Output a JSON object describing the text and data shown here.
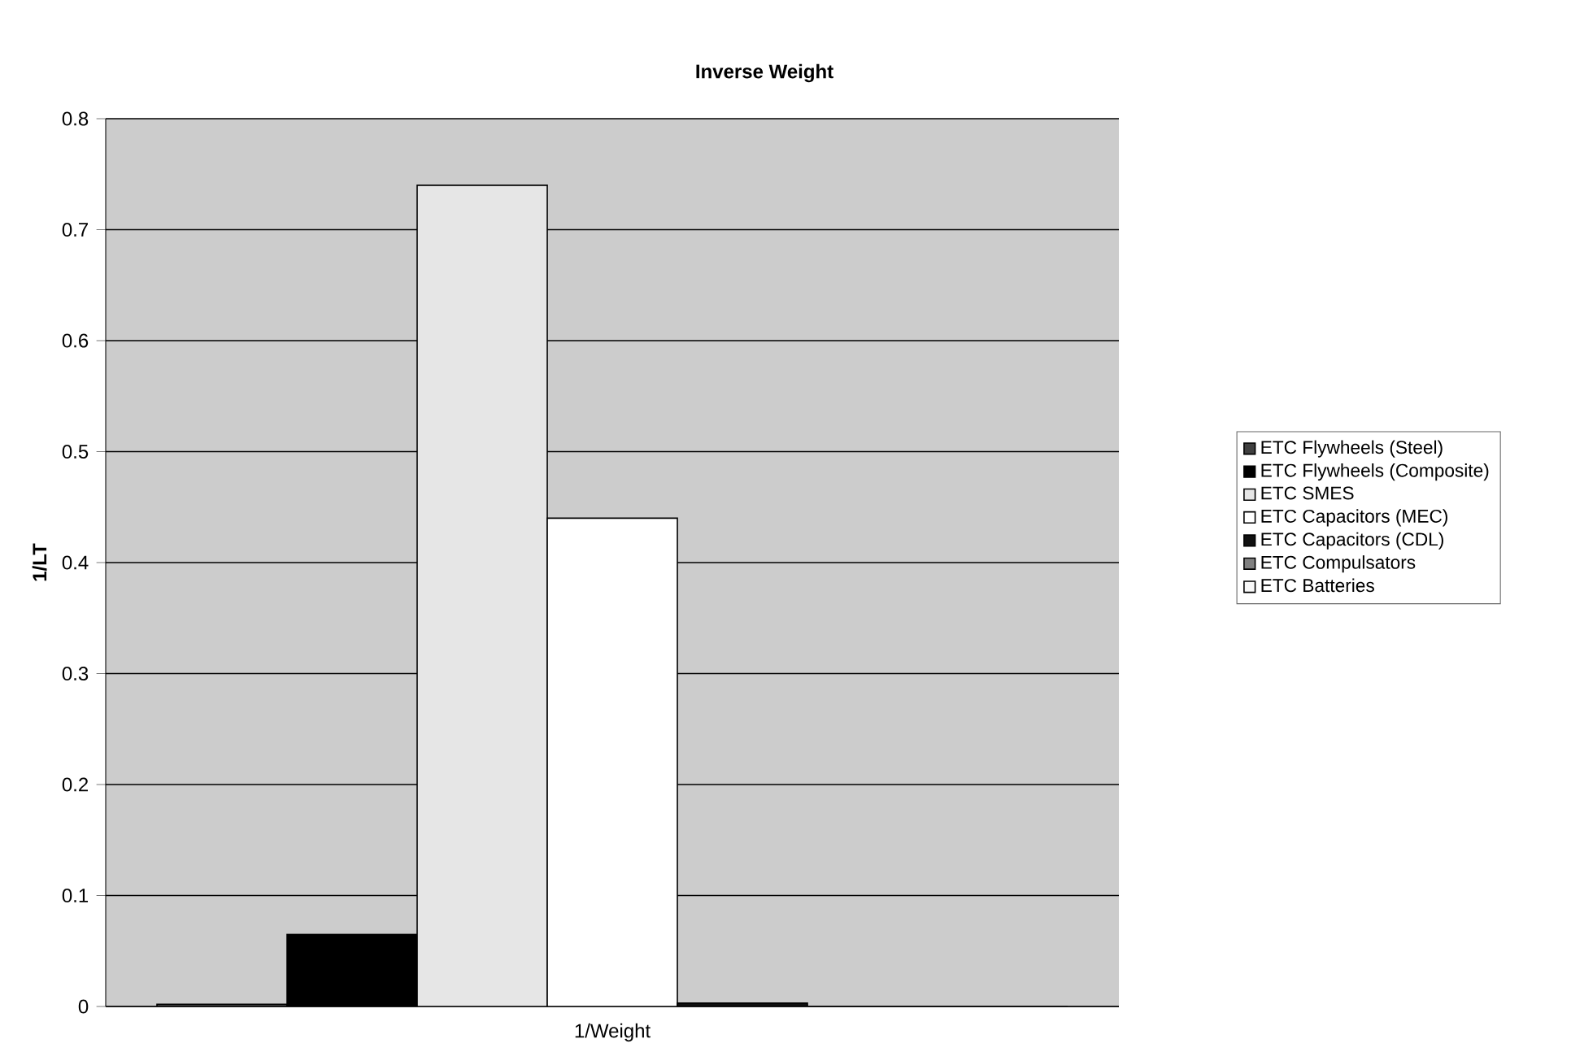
{
  "chart_data": {
    "type": "bar",
    "title": "Inverse Weight",
    "ylabel": "1/LT",
    "categories": [
      "1/Weight"
    ],
    "series": [
      {
        "name": "ETC Flywheels (Steel)",
        "color": "#404040",
        "values": [
          0.002
        ]
      },
      {
        "name": "ETC Flywheels (Composite)",
        "color": "#000000",
        "values": [
          0.065
        ]
      },
      {
        "name": "ETC SMES",
        "color": "#e6e6e6",
        "values": [
          0.74
        ]
      },
      {
        "name": "ETC Capacitors (MEC)",
        "color": "#ffffff",
        "values": [
          0.44
        ]
      },
      {
        "name": "ETC Capacitors (CDL)",
        "color": "#101010",
        "values": [
          0.003
        ]
      },
      {
        "name": "ETC Compulsators",
        "color": "#808080",
        "values": [
          0
        ]
      },
      {
        "name": "ETC Batteries",
        "color": "#f8f8f8",
        "values": [
          0
        ]
      }
    ],
    "ylim": [
      0,
      0.8
    ],
    "yticks": [
      0,
      0.1,
      0.2,
      0.3,
      0.4,
      0.5,
      0.6,
      0.7,
      0.8
    ],
    "grid": "y",
    "legend": "right"
  }
}
